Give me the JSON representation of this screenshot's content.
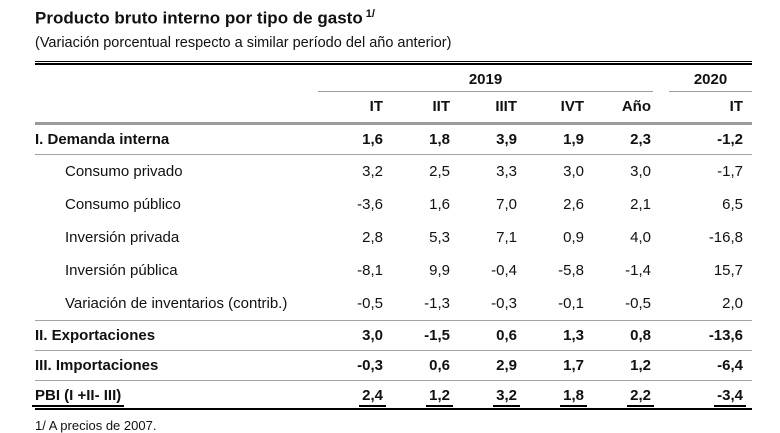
{
  "title": "Producto bruto interno por tipo de gasto",
  "title_superscript": "1/",
  "subtitle": "(Variación porcentual respecto a similar período del año anterior)",
  "footnote": "1/ A precios de 2007.",
  "table": {
    "year_groups": [
      {
        "label": "2019",
        "span": 5
      },
      {
        "label": "2020",
        "span": 1
      }
    ],
    "columns": [
      "IT",
      "IIT",
      "IIIT",
      "IVT",
      "Año",
      "IT"
    ],
    "rows": [
      {
        "label": "I. Demanda interna",
        "bold": true,
        "indent": false,
        "separator_after": true,
        "total": false,
        "values": [
          "1,6",
          "1,8",
          "3,9",
          "1,9",
          "2,3",
          "-1,2"
        ]
      },
      {
        "label": "Consumo privado",
        "bold": false,
        "indent": true,
        "separator_after": false,
        "total": false,
        "values": [
          "3,2",
          "2,5",
          "3,3",
          "3,0",
          "3,0",
          "-1,7"
        ]
      },
      {
        "label": "Consumo público",
        "bold": false,
        "indent": true,
        "separator_after": false,
        "total": false,
        "values": [
          "-3,6",
          "1,6",
          "7,0",
          "2,6",
          "2,1",
          "6,5"
        ]
      },
      {
        "label": "Inversión privada",
        "bold": false,
        "indent": true,
        "separator_after": false,
        "total": false,
        "values": [
          "2,8",
          "5,3",
          "7,1",
          "0,9",
          "4,0",
          "-16,8"
        ]
      },
      {
        "label": "Inversión pública",
        "bold": false,
        "indent": true,
        "separator_after": false,
        "total": false,
        "values": [
          "-8,1",
          "9,9",
          "-0,4",
          "-5,8",
          "-1,4",
          "15,7"
        ]
      },
      {
        "label": "Variación de inventarios (contrib.)",
        "bold": false,
        "indent": true,
        "separator_after": true,
        "total": false,
        "values": [
          "-0,5",
          "-1,3",
          "-0,3",
          "-0,1",
          "-0,5",
          "2,0"
        ]
      },
      {
        "label": "II. Exportaciones",
        "bold": true,
        "indent": false,
        "separator_after": true,
        "total": false,
        "values": [
          "3,0",
          "-1,5",
          "0,6",
          "1,3",
          "0,8",
          "-13,6"
        ]
      },
      {
        "label": "III. Importaciones",
        "bold": true,
        "indent": false,
        "separator_after": true,
        "total": false,
        "values": [
          "-0,3",
          "0,6",
          "2,9",
          "1,7",
          "1,2",
          "-6,4"
        ]
      },
      {
        "label": "PBI (I +II- III)",
        "bold": true,
        "indent": false,
        "separator_after": false,
        "total": true,
        "values": [
          "2,4",
          "1,2",
          "3,2",
          "1,8",
          "2,2",
          "-3,4"
        ]
      }
    ]
  }
}
